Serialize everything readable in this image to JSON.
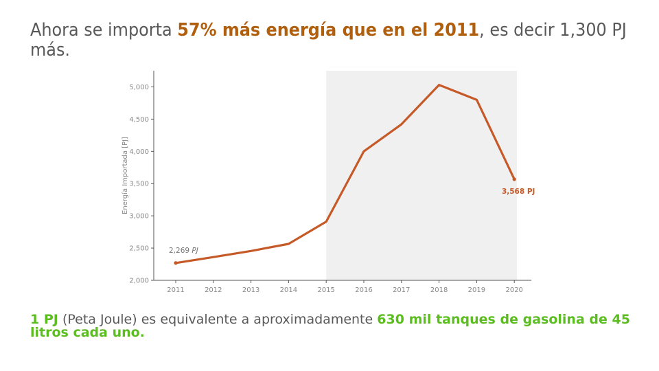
{
  "headline": {
    "prefix": "Ahora se importa ",
    "highlight": "57% más energía que en el 2011",
    "suffix": ", es decir 1,300 PJ más."
  },
  "footnote": {
    "strong1": "1 PJ",
    "text1": " (Peta Joule) es equivalente a aproximadamente ",
    "strong2": "630 mil tanques de gasolina de 45 litros cada uno."
  },
  "colors": {
    "line": "#c55a28",
    "highlight_band": "#f0f0f0",
    "headline_accent": "#b05f0f",
    "footnote_accent": "#5bbd20",
    "axis_text": "#888888"
  },
  "chart_data": {
    "type": "line",
    "title": "",
    "xlabel": "",
    "ylabel": "Energía Importada [PJ]",
    "x": [
      2011,
      2012,
      2013,
      2014,
      2015,
      2016,
      2017,
      2018,
      2019,
      2020
    ],
    "series": [
      {
        "values": [
          2269,
          2360,
          2455,
          2565,
          2910,
          4000,
          4420,
          5030,
          4800,
          3568
        ]
      }
    ],
    "ylim": [
      2000,
      5250
    ],
    "yticks": [
      2000,
      2500,
      3000,
      3500,
      4000,
      4500,
      5000
    ],
    "ytick_labels": [
      "2,000",
      "2,500",
      "3,000",
      "3,500",
      "4,000",
      "4,500",
      "5,000"
    ],
    "xtick_labels": [
      "2011",
      "2012",
      "2013",
      "2014",
      "2015",
      "2016",
      "2017",
      "2018",
      "2019",
      "2020"
    ],
    "shaded_x_range": [
      2015,
      2020
    ],
    "grid": false,
    "annotations": [
      {
        "x": 2011,
        "y": 2269,
        "label_value": "2,269",
        "label_unit": "PJ"
      },
      {
        "x": 2020,
        "y": 3568,
        "label_value": "3,568",
        "label_unit": "PJ"
      }
    ]
  }
}
